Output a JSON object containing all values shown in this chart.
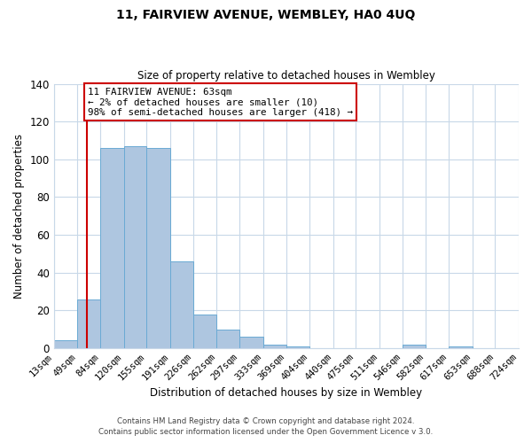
{
  "title": "11, FAIRVIEW AVENUE, WEMBLEY, HA0 4UQ",
  "subtitle": "Size of property relative to detached houses in Wembley",
  "xlabel": "Distribution of detached houses by size in Wembley",
  "ylabel": "Number of detached properties",
  "bar_values": [
    4,
    26,
    106,
    107,
    106,
    46,
    18,
    10,
    6,
    2,
    1,
    0,
    0,
    0,
    0,
    2,
    0,
    1,
    0,
    0
  ],
  "bin_edges": [
    13,
    49,
    84,
    120,
    155,
    191,
    226,
    262,
    297,
    333,
    369,
    404,
    440,
    475,
    511,
    546,
    582,
    617,
    653,
    688,
    724
  ],
  "xtick_labels": [
    "13sqm",
    "49sqm",
    "84sqm",
    "120sqm",
    "155sqm",
    "191sqm",
    "226sqm",
    "262sqm",
    "297sqm",
    "333sqm",
    "369sqm",
    "404sqm",
    "440sqm",
    "475sqm",
    "511sqm",
    "546sqm",
    "582sqm",
    "617sqm",
    "653sqm",
    "688sqm",
    "724sqm"
  ],
  "bar_color": "#aec6e0",
  "bar_edge_color": "#6aaad4",
  "ylim": [
    0,
    140
  ],
  "yticks": [
    0,
    20,
    40,
    60,
    80,
    100,
    120,
    140
  ],
  "property_line_x": 63,
  "property_line_color": "#cc0000",
  "annotation_title": "11 FAIRVIEW AVENUE: 63sqm",
  "annotation_line1": "← 2% of detached houses are smaller (10)",
  "annotation_line2": "98% of semi-detached houses are larger (418) →",
  "annotation_box_color": "#cc0000",
  "footer_line1": "Contains HM Land Registry data © Crown copyright and database right 2024.",
  "footer_line2": "Contains public sector information licensed under the Open Government Licence v 3.0.",
  "background_color": "#ffffff",
  "grid_color": "#c8d8e8",
  "title_fontsize": 10,
  "subtitle_fontsize": 8.5,
  "xlabel_fontsize": 8.5,
  "ylabel_fontsize": 8.5,
  "tick_fontsize": 7.5,
  "annotation_fontsize": 7.8,
  "footer_fontsize": 6.2
}
